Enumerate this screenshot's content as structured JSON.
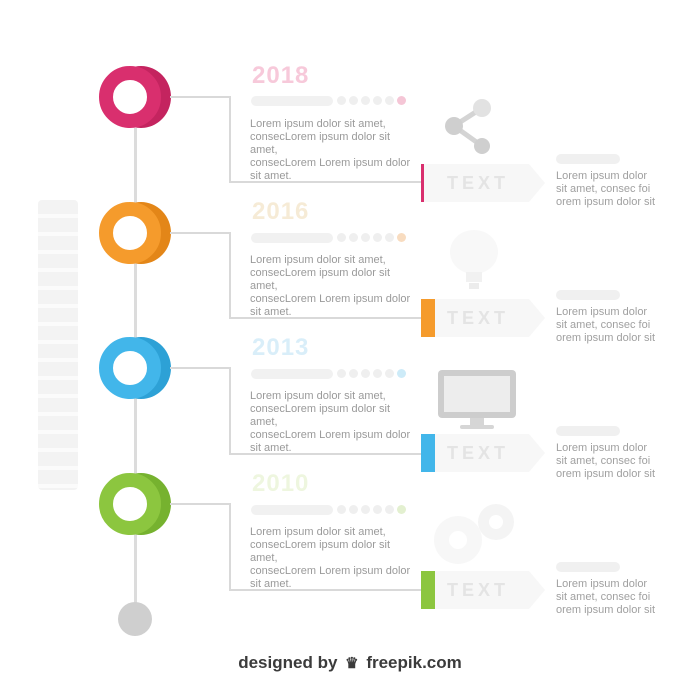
{
  "colors": {
    "pink": "#d92f6e",
    "pink_dark": "#c4245f",
    "orange": "#f59b2c",
    "orange_dark": "#e38618",
    "blue": "#42b6ea",
    "blue_dark": "#2da1d6",
    "green": "#8cc63f",
    "green_dark": "#76b22f",
    "gray_node": "#cfcfcf"
  },
  "steps": [
    {
      "year": "2018",
      "body": "Lorem ipsum dolor sit amet,\nconsecLorem ipsum dolor sit amet,\nconsecLorem Lorem ipsum dolor\nsit amet.",
      "tag_label": "TEXT",
      "right_text": "Lorem ipsum dolor\nsit amet, consec foi\norem ipsum dolor sit",
      "icon": "share-icon"
    },
    {
      "year": "2016",
      "body": "Lorem ipsum dolor sit amet,\nconsecLorem ipsum dolor sit amet,\nconsecLorem Lorem ipsum dolor\nsit amet.",
      "tag_label": "TEXT",
      "right_text": "Lorem ipsum dolor\nsit amet, consec foi\norem ipsum dolor sit",
      "icon": "lightbulb-icon"
    },
    {
      "year": "2013",
      "body": "Lorem ipsum dolor sit amet,\nconsecLorem ipsum dolor sit amet,\nconsecLorem Lorem ipsum dolor\nsit amet.",
      "tag_label": "TEXT",
      "right_text": "Lorem ipsum dolor\nsit amet, consec foi\norem ipsum dolor sit",
      "icon": "monitor-icon"
    },
    {
      "year": "2010",
      "body": "Lorem ipsum dolor sit amet,\nconsecLorem ipsum dolor sit amet,\nconsecLorem Lorem ipsum dolor\nsit amet.",
      "tag_label": "TEXT",
      "right_text": "Lorem ipsum dolor\nsit amet, consec foi\norem ipsum dolor sit",
      "icon": "gears-icon"
    }
  ],
  "footer": {
    "prefix": "designed by",
    "brand": "freepik.com"
  }
}
